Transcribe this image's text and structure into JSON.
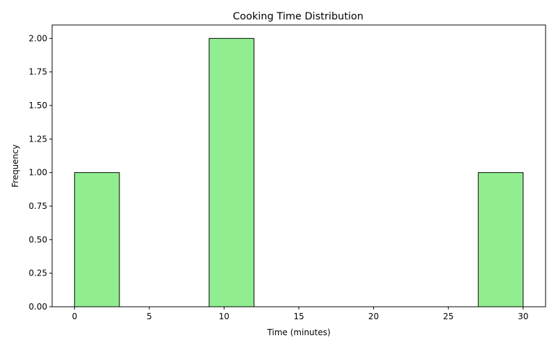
{
  "chart_data": {
    "type": "bar",
    "title": "Cooking Time Distribution",
    "xlabel": "Time (minutes)",
    "ylabel": "Frequency",
    "xlim": [
      -1.5,
      31.5
    ],
    "ylim": [
      0,
      2.1
    ],
    "xticks": [
      0,
      5,
      10,
      15,
      20,
      25,
      30
    ],
    "xtick_labels": [
      "0",
      "5",
      "10",
      "15",
      "20",
      "25",
      "30"
    ],
    "yticks": [
      0,
      0.25,
      0.5,
      0.75,
      1.0,
      1.25,
      1.5,
      1.75,
      2.0
    ],
    "ytick_labels": [
      "0.00",
      "0.25",
      "0.50",
      "0.75",
      "1.00",
      "1.25",
      "1.50",
      "1.75",
      "2.00"
    ],
    "bins": [
      {
        "start": 0,
        "end": 3,
        "value": 1
      },
      {
        "start": 9,
        "end": 12,
        "value": 2
      },
      {
        "start": 27,
        "end": 30,
        "value": 1
      }
    ],
    "bar_color": "#90ee90",
    "edge_color": "#000000",
    "grid": false,
    "legend": "none"
  }
}
